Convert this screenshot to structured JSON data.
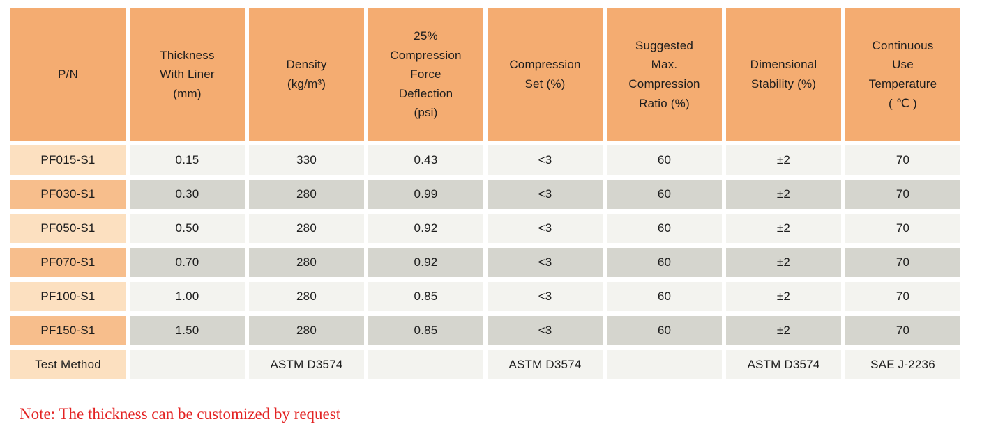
{
  "colors": {
    "header_bg": "#F4AC71",
    "pn_light": "#FCE0C0",
    "pn_dark": "#F7BE8C",
    "cell_light": "#F3F3EF",
    "cell_dark": "#D5D5CE",
    "note_red": "#E32222",
    "text": "#1D1D1D"
  },
  "table": {
    "headers": [
      "P/N",
      "Thickness\nWith Liner\n(mm)",
      "Density\n(kg/m³)",
      "25%\nCompression\nForce\nDeflection\n(psi)",
      "Compression\nSet (%)",
      "Suggested\nMax.\nCompression\nRatio (%)",
      "Dimensional\nStability (%)",
      "Continuous\nUse\nTemperature\n( ℃ )"
    ],
    "rows": [
      {
        "pn": "PF015-S1",
        "values": [
          "0.15",
          "330",
          "0.43",
          "<3",
          "60",
          "±2",
          "70"
        ]
      },
      {
        "pn": "PF030-S1",
        "values": [
          "0.30",
          "280",
          "0.99",
          "<3",
          "60",
          "±2",
          "70"
        ]
      },
      {
        "pn": "PF050-S1",
        "values": [
          "0.50",
          "280",
          "0.92",
          "<3",
          "60",
          "±2",
          "70"
        ]
      },
      {
        "pn": "PF070-S1",
        "values": [
          "0.70",
          "280",
          "0.92",
          "<3",
          "60",
          "±2",
          "70"
        ]
      },
      {
        "pn": "PF100-S1",
        "values": [
          "1.00",
          "280",
          "0.85",
          "<3",
          "60",
          "±2",
          "70"
        ]
      },
      {
        "pn": "PF150-S1",
        "values": [
          "1.50",
          "280",
          "0.85",
          "<3",
          "60",
          "±2",
          "70"
        ]
      },
      {
        "pn": "Test Method",
        "values": [
          "",
          "ASTM D3574",
          "",
          "ASTM D3574",
          "",
          "ASTM D3574",
          "SAE J-2236"
        ]
      }
    ]
  },
  "note": "Note: The thickness can be customized by request"
}
